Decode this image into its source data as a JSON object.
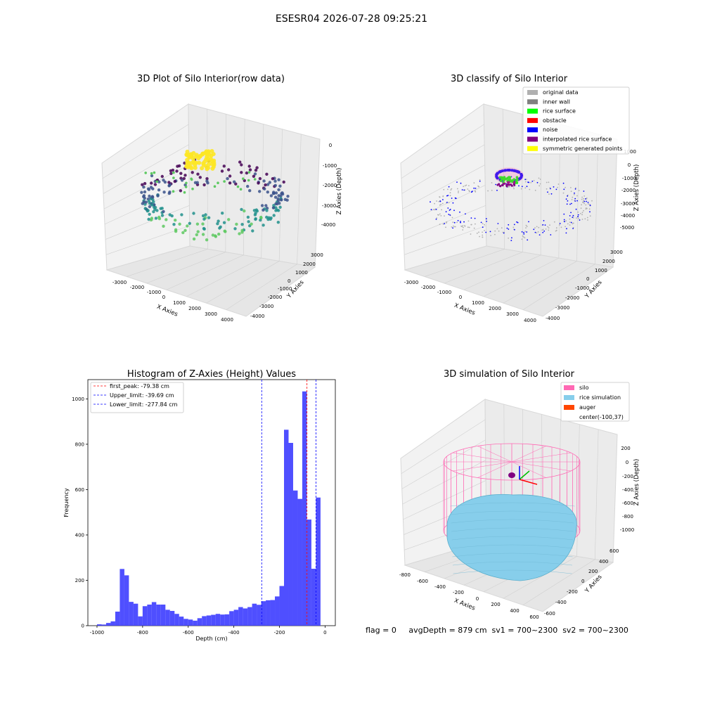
{
  "suptitle": "ESESR04 2026-07-28 09:25:21",
  "panels": {
    "raw": {
      "title": "3D Plot of Silo Interior(row data)",
      "xlabel": "X Axies",
      "ylabel": "Y Axies",
      "zlabel": "Z Axies (Depth)",
      "xticks": [
        "-3000",
        "-2000",
        "-1000",
        "0",
        "1000",
        "2000",
        "3000",
        "4000"
      ],
      "yticks": [
        "3000",
        "2000",
        "1000",
        "0",
        "-1000",
        "-2000",
        "-3000",
        "-4000"
      ],
      "zticks": [
        "0",
        "-1000",
        "-2000",
        "-3000",
        "-4000"
      ],
      "colormap": [
        "#440154",
        "#3b528b",
        "#21918c",
        "#5ec962",
        "#fde725"
      ]
    },
    "classify": {
      "title": "3D classify of Silo Interior",
      "xlabel": "X Axies",
      "ylabel": "Y Axies",
      "zlabel": "Z Axies (Depth)",
      "xticks": [
        "-3000",
        "-2000",
        "-1000",
        "0",
        "1000",
        "2000",
        "3000",
        "4000"
      ],
      "yticks": [
        "3000",
        "2000",
        "1000",
        "0",
        "-1000",
        "-2000",
        "-3000",
        "-4000"
      ],
      "zticks": [
        "1000",
        "0",
        "-1000",
        "-2000",
        "-3000",
        "-4000",
        "-5000"
      ],
      "legend": [
        {
          "label": "original data",
          "color": "#b0b0b0"
        },
        {
          "label": "inner wall",
          "color": "#808080"
        },
        {
          "label": "rice surface",
          "color": "#00ff00"
        },
        {
          "label": "obstacle",
          "color": "#ff0000"
        },
        {
          "label": "noise",
          "color": "#0000ff"
        },
        {
          "label": "interpolated rice surface",
          "color": "#800080"
        },
        {
          "label": "symmetric generated points",
          "color": "#ffff00"
        }
      ]
    },
    "simulation": {
      "title": "3D simulation of Silo Interior",
      "xlabel": "X Axies",
      "ylabel": "Y Axies",
      "zlabel": "Z Axies (Depth)",
      "xticks": [
        "-800",
        "-600",
        "-400",
        "-200",
        "0",
        "200",
        "400",
        "600"
      ],
      "yticks": [
        "600",
        "400",
        "200",
        "0",
        "-200",
        "-400",
        "-600"
      ],
      "zticks": [
        "200",
        "0",
        "-200",
        "-400",
        "-600",
        "-800",
        "-1000"
      ],
      "legend": [
        {
          "label": "silo",
          "color": "#ff69b4"
        },
        {
          "label": "rice simulation",
          "color": "#87ceeb"
        },
        {
          "label": "auger",
          "color": "#ff4500"
        },
        {
          "label": "center(-100,37)",
          "color": ""
        }
      ],
      "status": "flag = 0     avgDepth = 879 cm  sv1 = 700~2300  sv2 = 700~2300"
    }
  },
  "chart_data": {
    "type": "bar",
    "title": "Histogram of Z-Axies (Height) Values",
    "xlabel": "Depth (cm)",
    "ylabel": "Frequency",
    "xlim": [
      -1040,
      45
    ],
    "ylim": [
      0,
      1085
    ],
    "xticks": [
      "-1000",
      "-800",
      "-600",
      "-400",
      "-200",
      "0"
    ],
    "yticks": [
      "0",
      "200",
      "400",
      "600",
      "800",
      "1000"
    ],
    "bar_color": "#4040ff",
    "bin_start": -1000,
    "bin_width": 20,
    "values": [
      6,
      5,
      12,
      19,
      62,
      250,
      222,
      105,
      97,
      41,
      86,
      93,
      104,
      93,
      93,
      70,
      65,
      52,
      40,
      30,
      27,
      22,
      33,
      42,
      45,
      48,
      52,
      49,
      50,
      64,
      70,
      82,
      76,
      82,
      97,
      92,
      108,
      112,
      113,
      129,
      175,
      864,
      806,
      596,
      559,
      1033,
      468,
      251,
      565
    ],
    "lines": [
      {
        "label": "first_peak: -79.38 cm",
        "x": -79.38,
        "color": "#ff0000"
      },
      {
        "label": "Upper_limit: -39.69 cm",
        "x": -39.69,
        "color": "#0000ff"
      },
      {
        "label": "Lower_limit: -277.84 cm",
        "x": -277.84,
        "color": "#0000ff"
      }
    ]
  }
}
